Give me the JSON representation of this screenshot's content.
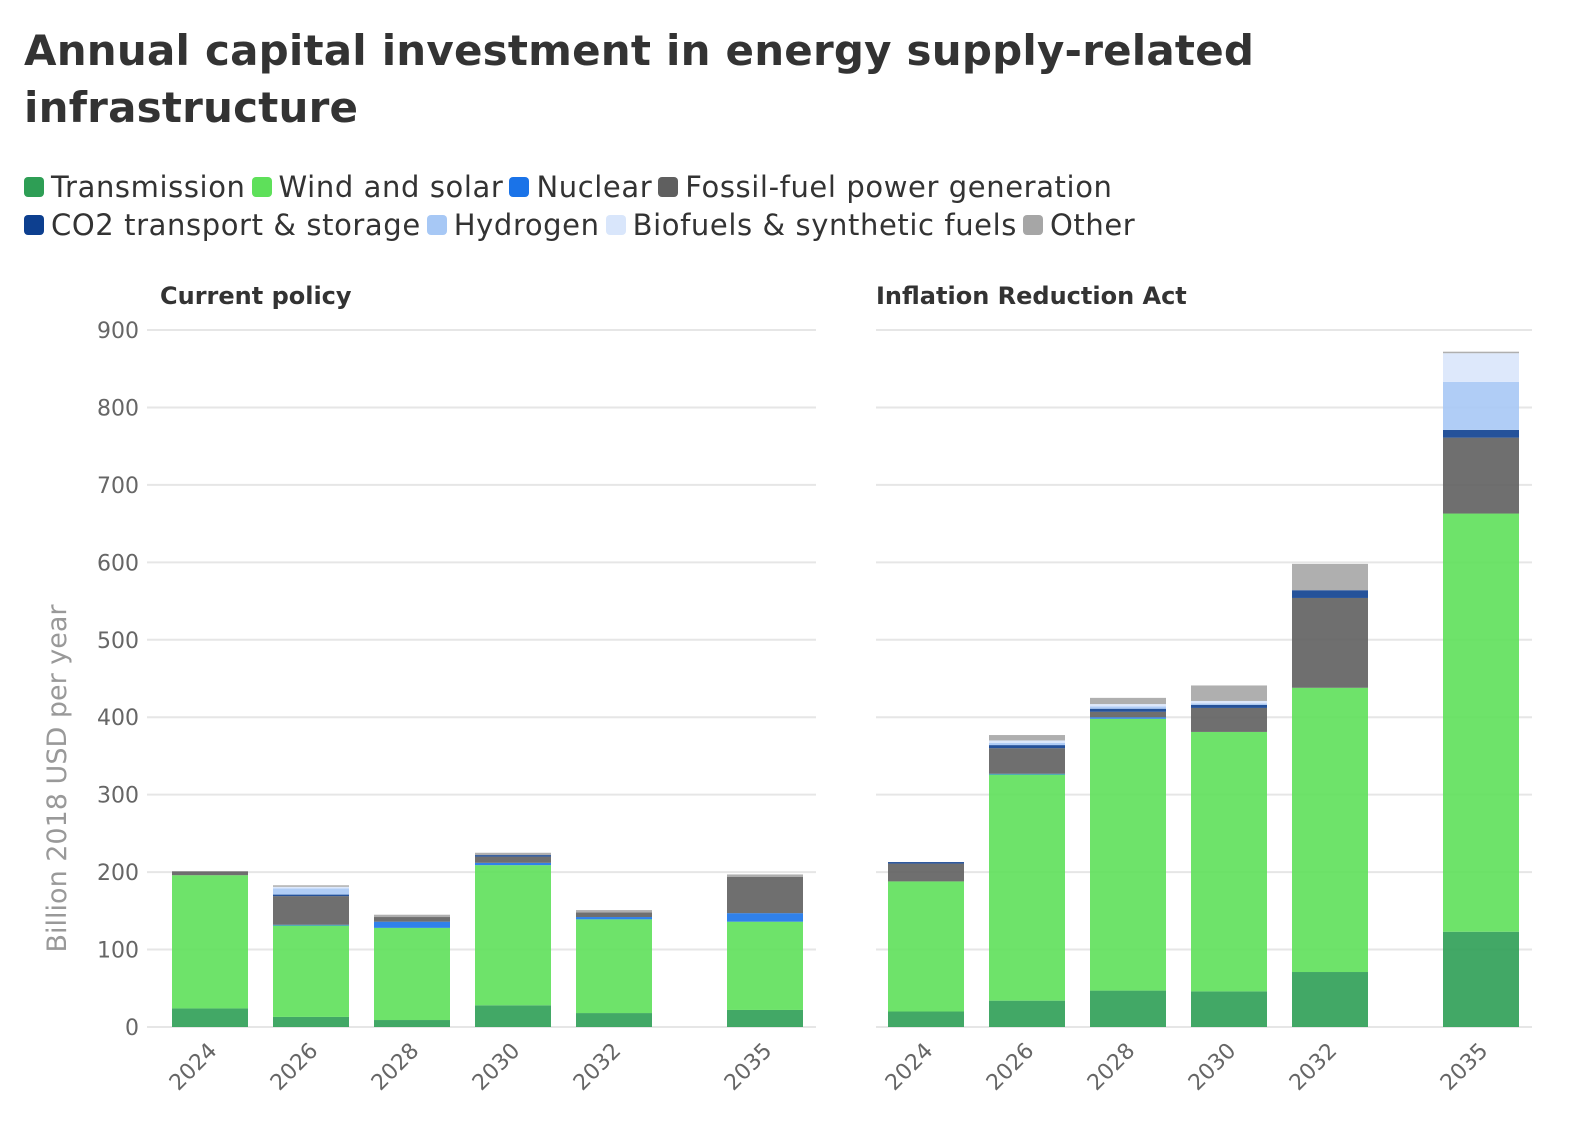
{
  "title": "Annual capital investment in energy supply-related infrastructure",
  "legend": {
    "row1": [
      {
        "label": "Transmission",
        "color": "#2e9e55"
      },
      {
        "label": "Wind and solar",
        "color": "#5ee05a"
      },
      {
        "label": "Nuclear",
        "color": "#1a73e8"
      },
      {
        "label": "Fossil-fuel power generation",
        "color": "#5f5f5f"
      }
    ],
    "row2": [
      {
        "label": "CO2 transport & storage",
        "color": "#0d3f8f"
      },
      {
        "label": "Hydrogen",
        "color": "#a7c8f5"
      },
      {
        "label": "Biofuels & synthetic fuels",
        "color": "#d9e6fb"
      },
      {
        "label": "Other",
        "color": "#a6a6a6"
      }
    ]
  },
  "chart_data": [
    {
      "type": "bar",
      "stacked": true,
      "title": "Current policy",
      "ylabel": "Billion 2018 USD per year",
      "ylim": [
        0,
        900
      ],
      "yticks": [
        0,
        100,
        200,
        300,
        400,
        500,
        600,
        700,
        800,
        900
      ],
      "categories": [
        "2024",
        "2026",
        "2028",
        "2030",
        "2032",
        "2035"
      ],
      "grid": true,
      "series": [
        {
          "name": "Transmission",
          "color": "#2e9e55",
          "values": [
            24,
            13,
            9,
            28,
            18,
            22
          ]
        },
        {
          "name": "Wind and solar",
          "color": "#5ee05a",
          "values": [
            172,
            118,
            119,
            181,
            121,
            114
          ]
        },
        {
          "name": "Nuclear",
          "color": "#1a73e8",
          "values": [
            0,
            1,
            8,
            3,
            3,
            11
          ]
        },
        {
          "name": "Fossil-fuel power generation",
          "color": "#5f5f5f",
          "values": [
            5,
            37,
            6,
            8,
            6,
            47
          ]
        },
        {
          "name": "CO2 transport & storage",
          "color": "#0d3f8f",
          "values": [
            0,
            2,
            0,
            2,
            0,
            0
          ]
        },
        {
          "name": "Hydrogen",
          "color": "#a7c8f5",
          "values": [
            0,
            8,
            0,
            0,
            0,
            0
          ]
        },
        {
          "name": "Biofuels & synthetic fuels",
          "color": "#d9e6fb",
          "values": [
            0,
            2,
            0,
            0,
            0,
            0
          ]
        },
        {
          "name": "Other",
          "color": "#a6a6a6",
          "values": [
            0,
            2,
            3,
            3,
            3,
            3
          ]
        }
      ]
    },
    {
      "type": "bar",
      "stacked": true,
      "title": "Inflation Reduction Act",
      "ylim": [
        0,
        900
      ],
      "categories": [
        "2024",
        "2026",
        "2028",
        "2030",
        "2032",
        "2035"
      ],
      "grid": true,
      "series": [
        {
          "name": "Transmission",
          "color": "#2e9e55",
          "values": [
            20,
            34,
            47,
            46,
            71,
            123
          ]
        },
        {
          "name": "Wind and solar",
          "color": "#5ee05a",
          "values": [
            168,
            292,
            351,
            335,
            367,
            540
          ]
        },
        {
          "name": "Nuclear",
          "color": "#1a73e8",
          "values": [
            0,
            1,
            2,
            0,
            0,
            0
          ]
        },
        {
          "name": "Fossil-fuel power generation",
          "color": "#5f5f5f",
          "values": [
            23,
            33,
            7,
            31,
            116,
            98
          ]
        },
        {
          "name": "CO2 transport & storage",
          "color": "#0d3f8f",
          "values": [
            2,
            4,
            4,
            4,
            10,
            10
          ]
        },
        {
          "name": "Hydrogen",
          "color": "#a7c8f5",
          "values": [
            0,
            3,
            3,
            2,
            0,
            62
          ]
        },
        {
          "name": "Biofuels & synthetic fuels",
          "color": "#d9e6fb",
          "values": [
            0,
            3,
            3,
            3,
            0,
            37
          ]
        },
        {
          "name": "Other",
          "color": "#a6a6a6",
          "values": [
            0,
            7,
            8,
            20,
            34,
            2
          ]
        }
      ]
    }
  ]
}
